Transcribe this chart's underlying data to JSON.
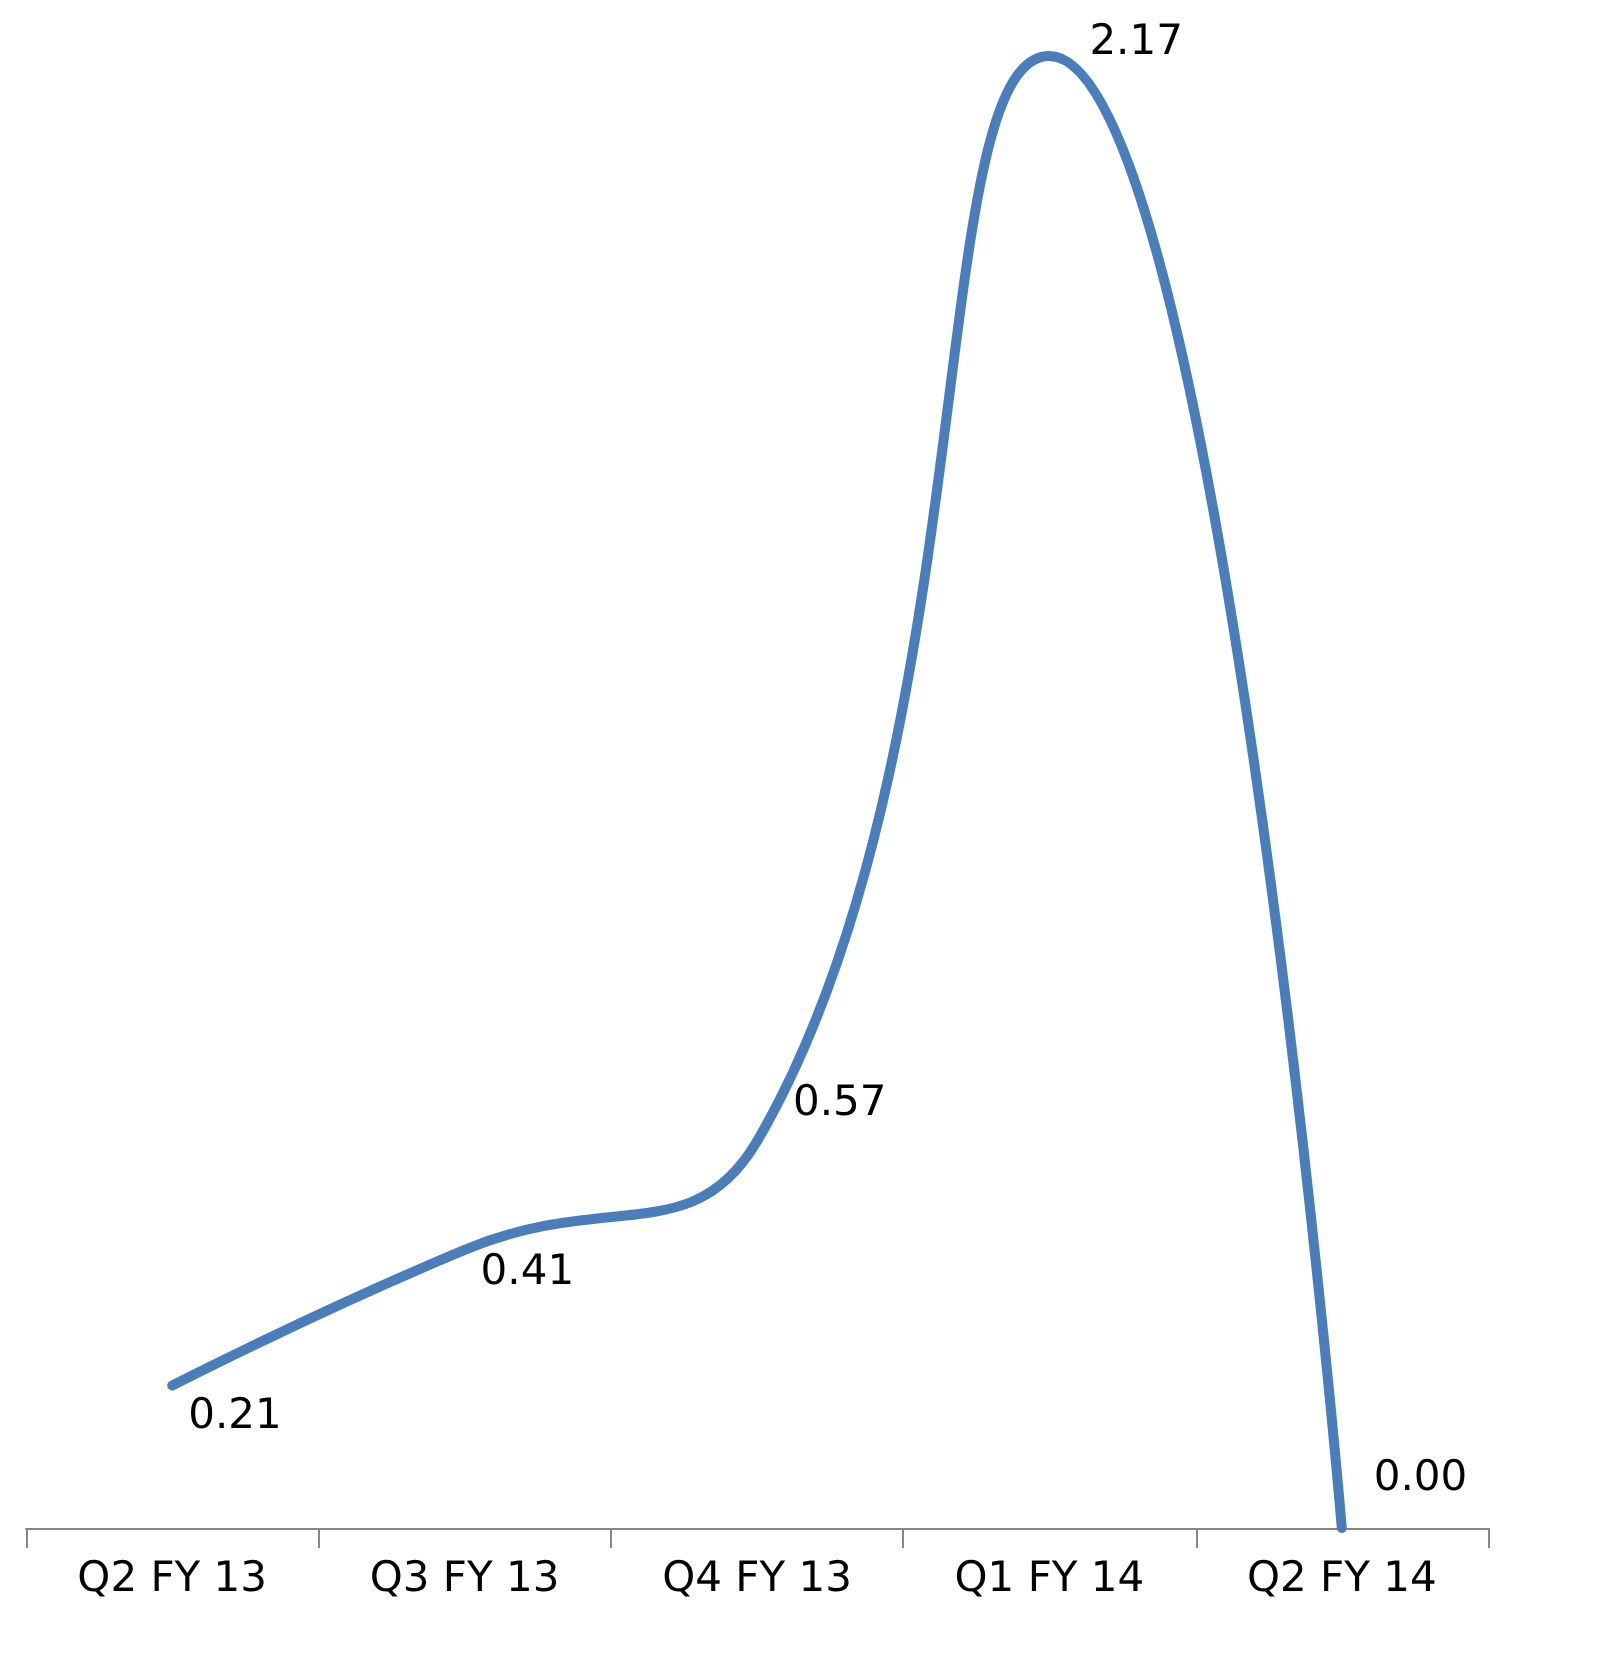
{
  "chart_data": {
    "type": "line",
    "categories": [
      "Q2 FY 13",
      "Q3 FY 13",
      "Q4 FY 13",
      "Q1 FY 14",
      "Q2 FY 14"
    ],
    "series": [
      {
        "color": "#4a7ebb",
        "values": [
          0.21,
          0.41,
          0.57,
          2.17,
          0.0
        ],
        "value_labels": [
          "0.21",
          "0.41",
          "0.57",
          "2.17",
          "0.00"
        ]
      }
    ],
    "marker": "none",
    "grid": false
  }
}
